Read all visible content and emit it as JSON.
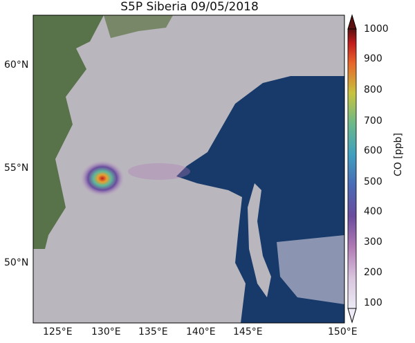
{
  "title": "S5P Siberia 09/05/2018",
  "lat_labels": [
    "60°N",
    "55°N",
    "50°N"
  ],
  "lon_labels": [
    "125°E",
    "130°E",
    "135°E",
    "140°E",
    "145°E",
    "150°E"
  ],
  "colorbar": {
    "label": "CO [ppb]",
    "ticks": [
      "100",
      "200",
      "300",
      "400",
      "500",
      "600",
      "700",
      "800",
      "900",
      "1000"
    ],
    "range": [
      100,
      1000
    ],
    "extend": "both",
    "colors": [
      "#ecebf5",
      "#c9a3cc",
      "#8e4a9a",
      "#4a6ab5",
      "#3f9fbf",
      "#5fb89a",
      "#c7c33f",
      "#f09a2e",
      "#e02b20",
      "#5c1010"
    ]
  },
  "map": {
    "extent": {
      "lon": [
        122.5,
        150
      ],
      "lat": [
        47,
        62.5
      ]
    },
    "land_color": "#b9b6bd",
    "forest_color": "#4e6a3c",
    "sea_color": "#173a6a",
    "plume_peak_ppb": 1000
  }
}
